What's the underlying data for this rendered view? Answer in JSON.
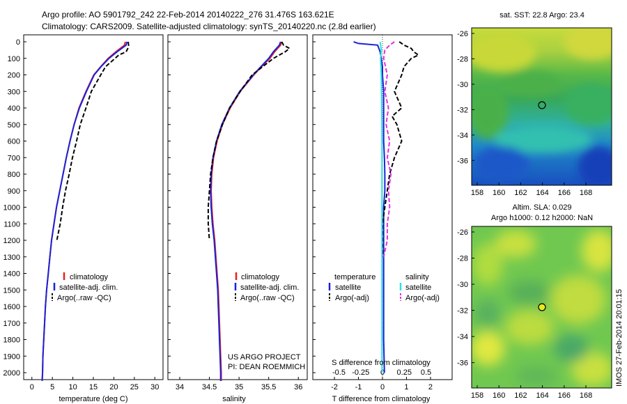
{
  "header": {
    "line1": "Argo profile: AO 5901792_242 22-Feb-2014 20140222_276 31.476S 163.621E",
    "line2": "Climatology: CARS2009. Satellite-adjusted climatology: synTS_20140220.nc (2.8d earlier)"
  },
  "depth_ticks": [
    "0",
    "100",
    "200",
    "300",
    "400",
    "500",
    "600",
    "700",
    "800",
    "900",
    "1000",
    "1100",
    "1200",
    "1300",
    "1400",
    "1500",
    "1600",
    "1700",
    "1800",
    "1900",
    "2000"
  ],
  "colors": {
    "climatology": "#e8201c",
    "satellite": "#1a22d8",
    "argo": "#000000",
    "sal_satellite": "#30e0e0",
    "sal_argo": "#e030e0"
  },
  "panels": {
    "temperature": {
      "xlabel": "temperature (deg C)",
      "xticks": [
        "0",
        "5",
        "10",
        "15",
        "20",
        "25",
        "30"
      ],
      "legend": [
        "climatology",
        "satellite-adj. clim.",
        "Argo(..raw -QC)"
      ]
    },
    "salinity": {
      "xlabel": "salinity",
      "xticks": [
        "34",
        "34.5",
        "35",
        "35.5",
        "36"
      ],
      "legend": [
        "climatology",
        "satellite-adj. clim.",
        "Argo(..raw -QC)"
      ],
      "credit1": "US ARGO PROJECT",
      "credit2": "PI: DEAN ROEMMICH"
    },
    "difference": {
      "top_label": "S difference from climatology",
      "top_ticks": [
        "-0.5",
        "-0.25",
        "0",
        "0.25",
        "0.5"
      ],
      "xlabel": "T difference from climatology",
      "xticks": [
        "-2",
        "-1",
        "0",
        "1",
        "2"
      ],
      "legend_temp_title": "temperature",
      "legend_sal_title": "salinity",
      "legend_temp": [
        "satellite",
        "Argo(-adj)"
      ],
      "legend_sal": [
        "satellite",
        "Argo(-adj)"
      ]
    },
    "map_sst": {
      "title": "sat. SST: 22.8 Argo: 23.4",
      "yticks": [
        "-26",
        "-28",
        "-30",
        "-32",
        "-34",
        "-36"
      ],
      "xticks": [
        "158",
        "160",
        "162",
        "164",
        "166",
        "168"
      ]
    },
    "map_sla": {
      "title1": "Altim. SLA: 0.029",
      "title2": "Argo h1000: 0.12 h2000: NaN",
      "yticks": [
        "-26",
        "-28",
        "-30",
        "-32",
        "-34",
        "-36"
      ],
      "xticks": [
        "158",
        "160",
        "162",
        "164",
        "166",
        "168"
      ]
    },
    "side_label": "IMOS 27-Feb-2014 20:01:15"
  },
  "chart_data": [
    {
      "type": "line",
      "name": "temperature",
      "xlabel": "temperature (deg C)",
      "ylabel": "",
      "xlim": [
        -2,
        32
      ],
      "ylim": [
        2070,
        0
      ],
      "series": [
        {
          "name": "climatology",
          "x": [
            22.8,
            22.6,
            20.5,
            18.6,
            16.8,
            15.1,
            13.2,
            11.5,
            10.3,
            9.3,
            8.4,
            7.6,
            6.8,
            6.0,
            5.4,
            4.8,
            4.4,
            4.0,
            3.6,
            3.3,
            3.1,
            2.9,
            2.7,
            2.6,
            2.5
          ],
          "y": [
            0,
            20,
            60,
            100,
            150,
            200,
            300,
            400,
            500,
            600,
            700,
            800,
            900,
            1000,
            1100,
            1200,
            1300,
            1400,
            1500,
            1600,
            1700,
            1800,
            1900,
            2000,
            2050
          ]
        },
        {
          "name": "satellite-adj. clim.",
          "x": [
            23.2,
            23.0,
            20.8,
            18.8,
            16.9,
            15.2,
            13.3,
            11.6,
            10.3,
            9.3,
            8.4,
            7.6,
            6.8,
            6.0,
            5.4,
            4.8,
            4.4,
            4.0,
            3.6,
            3.3,
            3.1,
            2.9,
            2.7,
            2.6,
            2.5
          ],
          "y": [
            0,
            20,
            60,
            100,
            150,
            200,
            300,
            400,
            500,
            600,
            700,
            800,
            900,
            1000,
            1100,
            1200,
            1300,
            1400,
            1500,
            1600,
            1700,
            1800,
            1900,
            2000,
            2050
          ]
        },
        {
          "name": "Argo(..raw -QC)",
          "x": [
            23.5,
            23.6,
            23.4,
            23.0,
            21.2,
            20.3,
            18.0,
            16.8,
            14.5,
            13.2,
            11.8,
            10.9,
            9.9,
            9.1,
            8.2,
            7.5,
            6.9,
            6.1
          ],
          "y": [
            0,
            20,
            40,
            60,
            80,
            100,
            150,
            200,
            300,
            400,
            500,
            600,
            700,
            800,
            900,
            1000,
            1100,
            1200
          ]
        }
      ]
    },
    {
      "type": "line",
      "name": "salinity",
      "xlabel": "salinity",
      "ylabel": "",
      "xlim": [
        33.8,
        36.15
      ],
      "ylim": [
        2070,
        0
      ],
      "series": [
        {
          "name": "climatology",
          "x": [
            35.72,
            35.7,
            35.6,
            35.52,
            35.38,
            35.25,
            35.02,
            34.85,
            34.72,
            34.63,
            34.57,
            34.54,
            34.53,
            34.54,
            34.56,
            34.59,
            34.61,
            34.63,
            34.65,
            34.66,
            34.67,
            34.68,
            34.69,
            34.7,
            34.7
          ],
          "y": [
            0,
            20,
            60,
            100,
            150,
            200,
            300,
            400,
            500,
            600,
            700,
            800,
            900,
            1000,
            1100,
            1200,
            1300,
            1400,
            1500,
            1600,
            1700,
            1800,
            1900,
            2000,
            2050
          ]
        },
        {
          "name": "satellite-adj. clim.",
          "x": [
            35.7,
            35.68,
            35.58,
            35.5,
            35.37,
            35.24,
            35.01,
            34.84,
            34.71,
            34.62,
            34.56,
            34.53,
            34.52,
            34.53,
            34.55,
            34.58,
            34.6,
            34.62,
            34.64,
            34.65,
            34.66,
            34.67,
            34.68,
            34.69,
            34.69
          ],
          "y": [
            0,
            20,
            60,
            100,
            150,
            200,
            300,
            400,
            500,
            600,
            700,
            800,
            900,
            1000,
            1100,
            1200,
            1300,
            1400,
            1500,
            1600,
            1700,
            1800,
            1900,
            2000,
            2050
          ]
        },
        {
          "name": "Argo(..raw -QC)",
          "x": [
            35.72,
            35.75,
            35.85,
            35.78,
            35.68,
            35.58,
            35.4,
            35.22,
            35.02,
            34.84,
            34.72,
            34.62,
            34.56,
            34.52,
            34.5,
            34.48,
            34.48,
            34.5
          ],
          "y": [
            0,
            20,
            40,
            60,
            80,
            100,
            150,
            200,
            300,
            400,
            500,
            600,
            700,
            800,
            900,
            1000,
            1100,
            1200
          ]
        }
      ]
    },
    {
      "type": "line",
      "name": "difference",
      "xlabel": "T difference from climatology",
      "ylabel": "",
      "xlim": [
        -2.9,
        2.9
      ],
      "ylim": [
        2070,
        0
      ],
      "series": [
        {
          "name": "temperature satellite",
          "x": [
            -1.2,
            -1.0,
            -0.2,
            -0.1,
            -0.05,
            0.0,
            0.0,
            0.05,
            0.05,
            0.05,
            0.05,
            0.08,
            0.1,
            0.1,
            0.05,
            0.05,
            0.05,
            0.05,
            0.05,
            0.05,
            0.05,
            0.05,
            0.08
          ],
          "y": [
            0,
            10,
            20,
            60,
            100,
            150,
            200,
            300,
            400,
            500,
            600,
            700,
            800,
            900,
            1000,
            1100,
            1200,
            1300,
            1400,
            1500,
            1600,
            1800,
            2000
          ]
        },
        {
          "name": "temperature Argo(-adj)",
          "x": [
            0.7,
            0.9,
            1.2,
            1.3,
            1.5,
            1.2,
            0.9,
            0.8,
            0.5,
            0.8,
            0.4,
            0.6,
            0.8,
            0.5,
            0.3,
            0.2,
            0.1,
            0.0,
            0.0,
            0.0
          ],
          "y": [
            0,
            20,
            40,
            60,
            80,
            100,
            150,
            200,
            300,
            400,
            450,
            500,
            600,
            700,
            800,
            900,
            1000,
            1100,
            1200,
            1300
          ]
        },
        {
          "name": "salinity satellite",
          "x": [
            -0.1,
            -0.05,
            -0.08,
            -0.05,
            -0.04,
            -0.03,
            -0.02,
            -0.02,
            -0.02,
            -0.02,
            -0.02,
            -0.02,
            -0.02
          ],
          "y": [
            0,
            50,
            100,
            200,
            300,
            400,
            600,
            800,
            1000,
            1200,
            1500,
            1800,
            2000
          ]
        },
        {
          "name": "salinity Argo(-adj)",
          "x": [
            0.5,
            0.3,
            0.1,
            0.05,
            0.2,
            0.1,
            0.25,
            0.15,
            0.3,
            0.2,
            0.35,
            0.25,
            0.3,
            0.2,
            0.2,
            0.05
          ],
          "y": [
            0,
            20,
            50,
            100,
            200,
            300,
            400,
            500,
            600,
            700,
            800,
            900,
            1000,
            1100,
            1200,
            1300
          ]
        }
      ]
    }
  ]
}
